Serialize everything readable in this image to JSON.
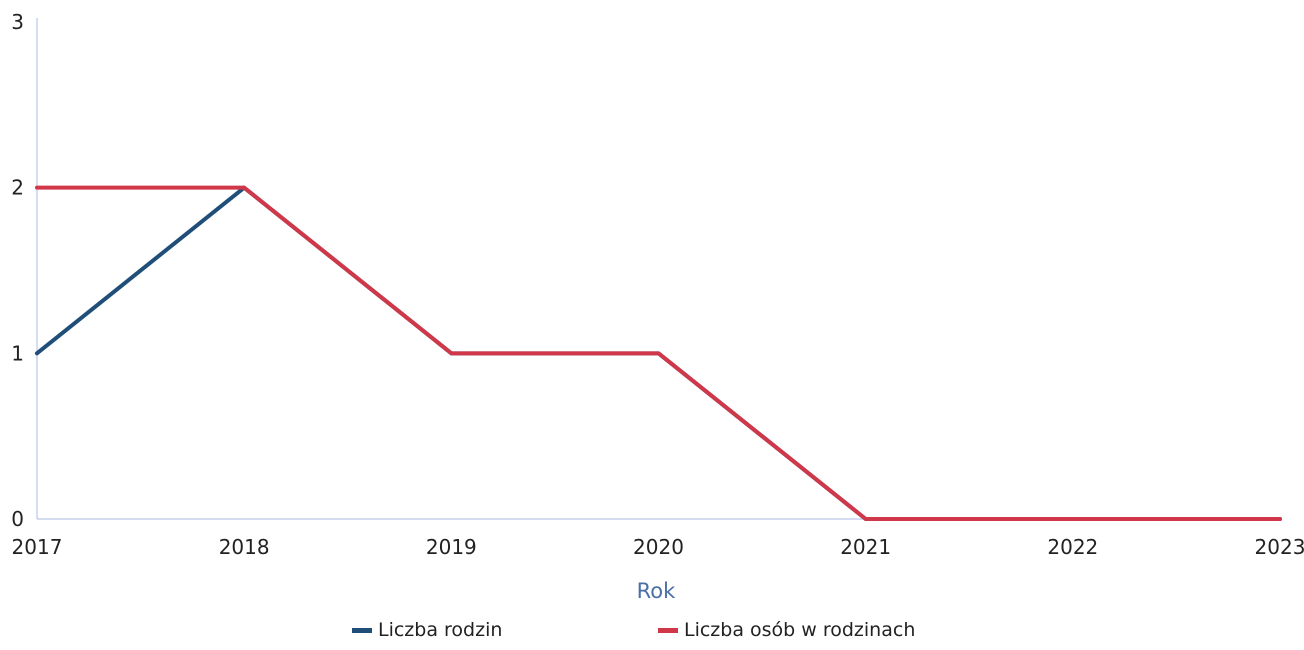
{
  "chart_data": {
    "type": "line",
    "x": [
      "2017",
      "2018",
      "2019",
      "2020",
      "2021",
      "2022",
      "2023"
    ],
    "xlabel": "Rok",
    "ylabel": "",
    "ylim": [
      0,
      3
    ],
    "yticks": [
      "0",
      "1",
      "2",
      "3"
    ],
    "grid": false,
    "legend_position": "bottom",
    "series": [
      {
        "name": "Liczba rodzin",
        "color": "#1f4e79",
        "values": [
          1,
          2,
          1,
          1,
          0,
          0,
          0
        ]
      },
      {
        "name": "Liczba osób w rodzinach",
        "color": "#d0384a",
        "values": [
          2,
          2,
          1,
          1,
          0,
          0,
          0
        ]
      }
    ]
  }
}
